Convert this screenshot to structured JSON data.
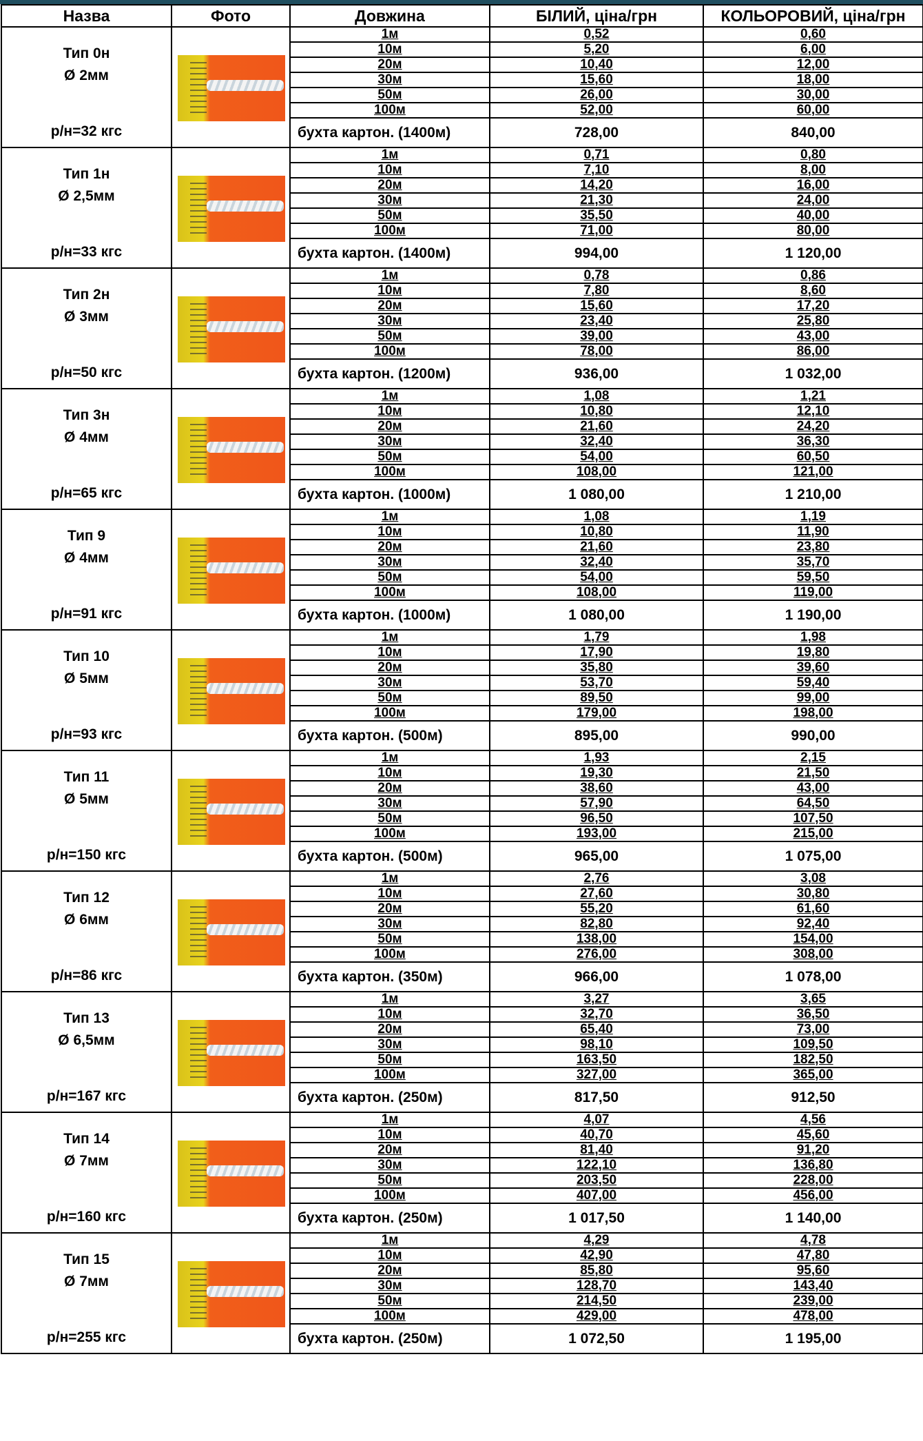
{
  "headers": {
    "name": "Назва",
    "photo": "Фото",
    "length": "Довжина",
    "white": "БІЛИЙ, ціна/грн",
    "colored": "КОЛЬОРОВИЙ, ціна/грн"
  },
  "lengths": [
    "1м",
    "10м",
    "20м",
    "30м",
    "50м",
    "100м"
  ],
  "products": [
    {
      "name": "Тип 0н",
      "diameter": "Ø 2мм",
      "strength": "р/н=32 кгс",
      "white": [
        "0,52",
        "5,20",
        "10,40",
        "15,60",
        "26,00",
        "52,00"
      ],
      "colored": [
        "0,60",
        "6,00",
        "12,00",
        "18,00",
        "30,00",
        "60,00"
      ],
      "bulk": "бухта картон. (1400м)",
      "bulk_white": "728,00",
      "bulk_colored": "840,00"
    },
    {
      "name": "Тип 1н",
      "diameter": "Ø 2,5мм",
      "strength": "р/н=33 кгс",
      "white": [
        "0,71",
        "7,10",
        "14,20",
        "21,30",
        "35,50",
        "71,00"
      ],
      "colored": [
        "0,80",
        "8,00",
        "16,00",
        "24,00",
        "40,00",
        "80,00"
      ],
      "bulk": "бухта картон. (1400м)",
      "bulk_white": "994,00",
      "bulk_colored": "1 120,00"
    },
    {
      "name": "Тип 2н",
      "diameter": "Ø 3мм",
      "strength": "р/н=50 кгс",
      "white": [
        "0,78",
        "7,80",
        "15,60",
        "23,40",
        "39,00",
        "78,00"
      ],
      "colored": [
        "0,86",
        "8,60",
        "17,20",
        "25,80",
        "43,00",
        "86,00"
      ],
      "bulk": "бухта картон. (1200м)",
      "bulk_white": "936,00",
      "bulk_colored": "1 032,00"
    },
    {
      "name": "Тип 3н",
      "diameter": "Ø 4мм",
      "strength": "р/н=65 кгс",
      "white": [
        "1,08",
        "10,80",
        "21,60",
        "32,40",
        "54,00",
        "108,00"
      ],
      "colored": [
        "1,21",
        "12,10",
        "24,20",
        "36,30",
        "60,50",
        "121,00"
      ],
      "bulk": "бухта картон. (1000м)",
      "bulk_white": "1 080,00",
      "bulk_colored": "1 210,00"
    },
    {
      "name": "Тип 9",
      "diameter": "Ø 4мм",
      "strength": "р/н=91 кгс",
      "white": [
        "1,08",
        "10,80",
        "21,60",
        "32,40",
        "54,00",
        "108,00"
      ],
      "colored": [
        "1,19",
        "11,90",
        "23,80",
        "35,70",
        "59,50",
        "119,00"
      ],
      "bulk": "бухта картон. (1000м)",
      "bulk_white": "1 080,00",
      "bulk_colored": "1 190,00"
    },
    {
      "name": "Тип 10",
      "diameter": "Ø 5мм",
      "strength": "р/н=93 кгс",
      "white": [
        "1,79",
        "17,90",
        "35,80",
        "53,70",
        "89,50",
        "179,00"
      ],
      "colored": [
        "1,98",
        "19,80",
        "39,60",
        "59,40",
        "99,00",
        "198,00"
      ],
      "bulk": "бухта картон. (500м)",
      "bulk_white": "895,00",
      "bulk_colored": "990,00"
    },
    {
      "name": "Тип 11",
      "diameter": "Ø 5мм",
      "strength": "р/н=150 кгс",
      "white": [
        "1,93",
        "19,30",
        "38,60",
        "57,90",
        "96,50",
        "193,00"
      ],
      "colored": [
        "2,15",
        "21,50",
        "43,00",
        "64,50",
        "107,50",
        "215,00"
      ],
      "bulk": "бухта картон. (500м)",
      "bulk_white": "965,00",
      "bulk_colored": "1 075,00"
    },
    {
      "name": "Тип 12",
      "diameter": "Ø 6мм",
      "strength": "р/н=86 кгс",
      "white": [
        "2,76",
        "27,60",
        "55,20",
        "82,80",
        "138,00",
        "276,00"
      ],
      "colored": [
        "3,08",
        "30,80",
        "61,60",
        "92,40",
        "154,00",
        "308,00"
      ],
      "bulk": "бухта картон. (350м)",
      "bulk_white": "966,00",
      "bulk_colored": "1 078,00"
    },
    {
      "name": "Тип 13",
      "diameter": "Ø 6,5мм",
      "strength": "р/н=167 кгс",
      "white": [
        "3,27",
        "32,70",
        "65,40",
        "98,10",
        "163,50",
        "327,00"
      ],
      "colored": [
        "3,65",
        "36,50",
        "73,00",
        "109,50",
        "182,50",
        "365,00"
      ],
      "bulk": "бухта картон. (250м)",
      "bulk_white": "817,50",
      "bulk_colored": "912,50"
    },
    {
      "name": "Тип 14",
      "diameter": "Ø 7мм",
      "strength": "р/н=160 кгс",
      "white": [
        "4,07",
        "40,70",
        "81,40",
        "122,10",
        "203,50",
        "407,00"
      ],
      "colored": [
        "4,56",
        "45,60",
        "91,20",
        "136,80",
        "228,00",
        "456,00"
      ],
      "bulk": "бухта картон. (250м)",
      "bulk_white": "1 017,50",
      "bulk_colored": "1 140,00"
    },
    {
      "name": "Тип 15",
      "diameter": "Ø 7мм",
      "strength": "р/н=255 кгс",
      "white": [
        "4,29",
        "42,90",
        "85,80",
        "128,70",
        "214,50",
        "429,00"
      ],
      "colored": [
        "4,78",
        "47,80",
        "95,60",
        "143,40",
        "239,00",
        "478,00"
      ],
      "bulk": "бухта картон. (250м)",
      "bulk_white": "1 072,50",
      "bulk_colored": "1 195,00"
    }
  ]
}
